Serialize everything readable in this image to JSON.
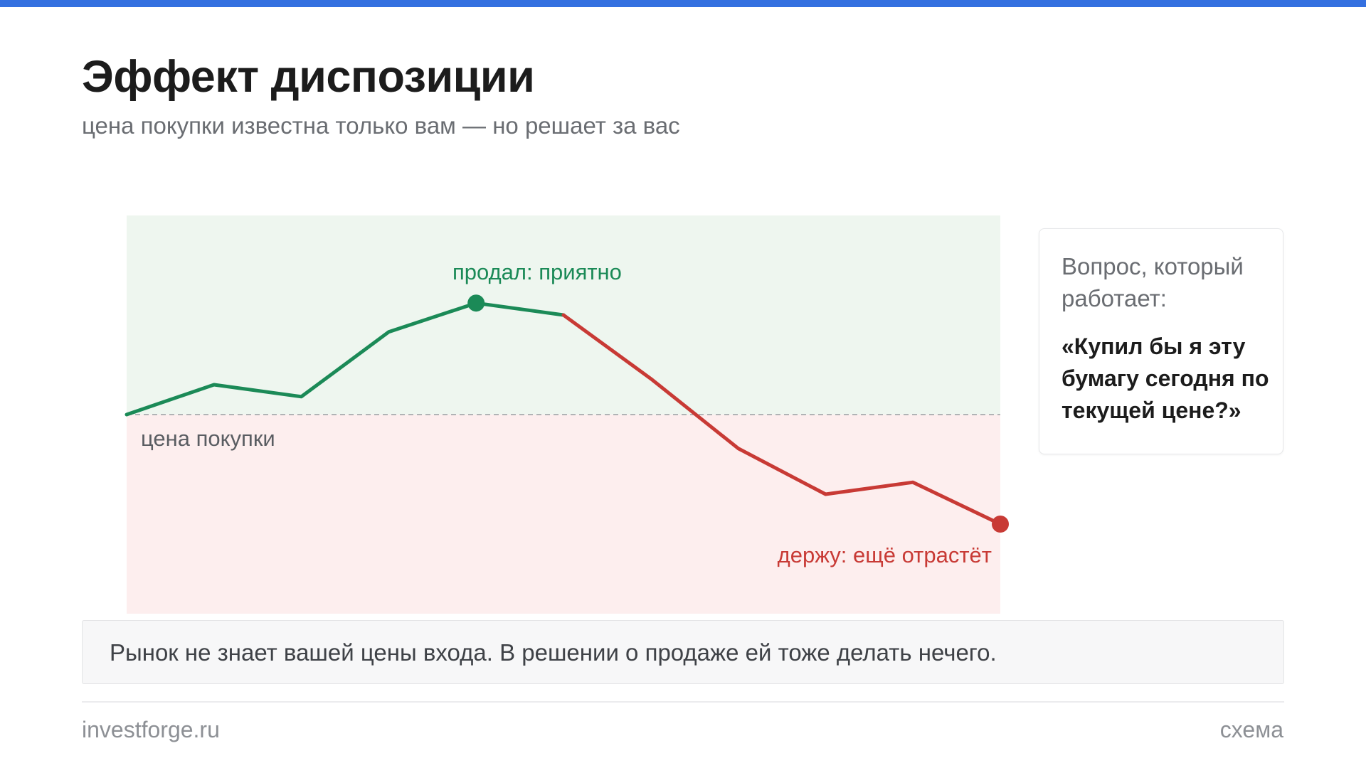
{
  "header": {
    "title": "Эффект диспозиции",
    "subtitle": "цена покупки известна только вам — но решает за вас"
  },
  "colors": {
    "accent_bar": "#3470e0",
    "gain": "#1b8a57",
    "loss": "#c83a35",
    "gain_zone": "#eef6ef",
    "loss_zone": "#fdeeee"
  },
  "chart_data": {
    "type": "line",
    "x": [
      0,
      1,
      2,
      3,
      4,
      5,
      6,
      7,
      8,
      9,
      10
    ],
    "values": [
      0,
      30,
      18,
      83,
      112,
      100,
      36,
      -34,
      -80,
      -68,
      -110
    ],
    "baseline": {
      "value": 0,
      "label": "цена покупки"
    },
    "ylim": [
      -200,
      200
    ],
    "grid": false,
    "series": [
      {
        "color": "#1b8a57",
        "from_index": 0,
        "to_index": 5
      },
      {
        "color": "#c83a35",
        "from_index": 5,
        "to_index": 10
      }
    ],
    "annotations": [
      {
        "label": "продал: приятно",
        "index": 4,
        "color": "#1b8a57"
      },
      {
        "label": "держу: ещё отрастёт",
        "index": 10,
        "color": "#c83a35"
      }
    ]
  },
  "question_card": {
    "intro": "Вопрос, который работает:",
    "text": "«Купил бы я эту бумагу сегодня по текущей цене?»"
  },
  "note": {
    "text": "Рынок не знает вашей цены входа. В решении о продаже ей тоже делать нечего."
  },
  "footer": {
    "left": "investforge.ru",
    "right": "схема"
  }
}
